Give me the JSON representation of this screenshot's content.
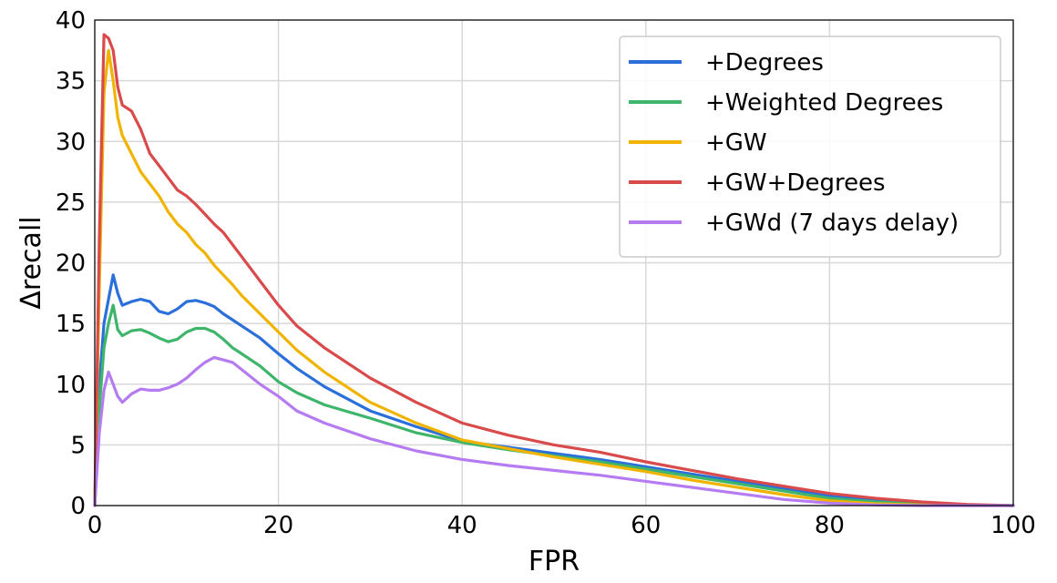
{
  "chart_data": {
    "type": "line",
    "title": "",
    "xlabel": "FPR",
    "ylabel": "Δrecall",
    "xlim": [
      0,
      100
    ],
    "ylim": [
      0,
      40
    ],
    "xticks": [
      "0",
      "20",
      "40",
      "60",
      "80",
      "100"
    ],
    "yticks": [
      "0",
      "5",
      "10",
      "15",
      "20",
      "25",
      "30",
      "35",
      "40"
    ],
    "grid": true,
    "legend_position": "top-right",
    "series": [
      {
        "name": "+Degrees",
        "color": "#2b6fdb",
        "x": [
          0,
          0.5,
          1,
          1.5,
          2,
          2.5,
          3,
          4,
          5,
          6,
          7,
          8,
          9,
          10,
          11,
          12,
          13,
          14,
          15,
          16,
          18,
          20,
          22,
          25,
          30,
          35,
          40,
          45,
          50,
          55,
          60,
          65,
          70,
          75,
          80,
          85,
          90,
          95,
          100
        ],
        "y": [
          0,
          10,
          15,
          17,
          19,
          17.5,
          16.5,
          16.8,
          17,
          16.8,
          16,
          15.8,
          16.2,
          16.8,
          16.9,
          16.7,
          16.4,
          15.8,
          15.3,
          14.8,
          13.8,
          12.5,
          11.3,
          9.8,
          7.8,
          6.5,
          5.3,
          4.8,
          4.3,
          3.8,
          3.2,
          2.6,
          2.0,
          1.4,
          0.8,
          0.4,
          0.2,
          0.05,
          0
        ]
      },
      {
        "name": "+Weighted Degrees",
        "color": "#3fb56c",
        "x": [
          0,
          0.5,
          1,
          1.5,
          2,
          2.5,
          3,
          4,
          5,
          6,
          7,
          8,
          9,
          10,
          11,
          12,
          13,
          14,
          15,
          16,
          18,
          20,
          22,
          25,
          30,
          35,
          40,
          45,
          50,
          55,
          60,
          65,
          70,
          75,
          80,
          85,
          90,
          95,
          100
        ],
        "y": [
          0,
          8,
          13,
          15,
          16.5,
          14.5,
          14,
          14.4,
          14.5,
          14.2,
          13.8,
          13.5,
          13.7,
          14.3,
          14.6,
          14.6,
          14.3,
          13.7,
          13,
          12.5,
          11.5,
          10.2,
          9.3,
          8.3,
          7.2,
          6.0,
          5.2,
          4.6,
          4.1,
          3.6,
          3.0,
          2.4,
          1.8,
          1.2,
          0.6,
          0.3,
          0.1,
          0.02,
          0
        ]
      },
      {
        "name": "+GW",
        "color": "#f0b400",
        "x": [
          0,
          0.5,
          1,
          1.5,
          2,
          2.5,
          3,
          4,
          5,
          6,
          7,
          8,
          9,
          10,
          11,
          12,
          13,
          14,
          15,
          16,
          18,
          20,
          22,
          25,
          30,
          35,
          40,
          45,
          50,
          55,
          60,
          65,
          70,
          75,
          80,
          85,
          90,
          95,
          100
        ],
        "y": [
          0,
          18,
          34,
          37.5,
          35,
          32,
          30.5,
          29,
          27.5,
          26.5,
          25.5,
          24.2,
          23.2,
          22.5,
          21.5,
          20.8,
          19.8,
          19,
          18.2,
          17.3,
          15.8,
          14.3,
          12.8,
          11,
          8.5,
          6.8,
          5.4,
          4.7,
          4.0,
          3.4,
          2.8,
          2.1,
          1.5,
          0.9,
          0.4,
          0.15,
          0.05,
          0,
          0
        ]
      },
      {
        "name": "+GW+Degrees",
        "color": "#d94b4b",
        "x": [
          0,
          0.5,
          1,
          1.5,
          2,
          2.5,
          3,
          4,
          5,
          6,
          7,
          8,
          9,
          10,
          11,
          12,
          13,
          14,
          15,
          16,
          18,
          20,
          22,
          25,
          30,
          35,
          40,
          45,
          50,
          55,
          60,
          65,
          70,
          75,
          80,
          85,
          90,
          95,
          100
        ],
        "y": [
          0,
          22,
          38.8,
          38.5,
          37.5,
          34.5,
          33,
          32.5,
          31,
          29,
          28,
          27,
          26,
          25.5,
          24.8,
          24,
          23.2,
          22.5,
          21.5,
          20.5,
          18.5,
          16.5,
          14.8,
          13,
          10.5,
          8.5,
          6.8,
          5.8,
          5.0,
          4.4,
          3.6,
          2.9,
          2.2,
          1.6,
          1.0,
          0.6,
          0.3,
          0.1,
          0
        ]
      },
      {
        "name": "+GWd (7 days delay)",
        "color": "#b57cf2",
        "x": [
          0,
          0.5,
          1,
          1.5,
          2,
          2.5,
          3,
          4,
          5,
          6,
          7,
          8,
          9,
          10,
          11,
          12,
          13,
          14,
          15,
          16,
          18,
          20,
          22,
          25,
          30,
          35,
          40,
          45,
          50,
          55,
          60,
          65,
          70,
          75,
          80,
          85,
          90,
          95,
          100
        ],
        "y": [
          0,
          6,
          9.5,
          11,
          10,
          9,
          8.5,
          9.2,
          9.6,
          9.5,
          9.5,
          9.7,
          10,
          10.5,
          11.2,
          11.8,
          12.2,
          12,
          11.8,
          11.2,
          10,
          9,
          7.8,
          6.8,
          5.5,
          4.5,
          3.8,
          3.3,
          2.9,
          2.5,
          2.0,
          1.5,
          1.0,
          0.5,
          0.2,
          0.05,
          0,
          0,
          0
        ]
      }
    ]
  }
}
